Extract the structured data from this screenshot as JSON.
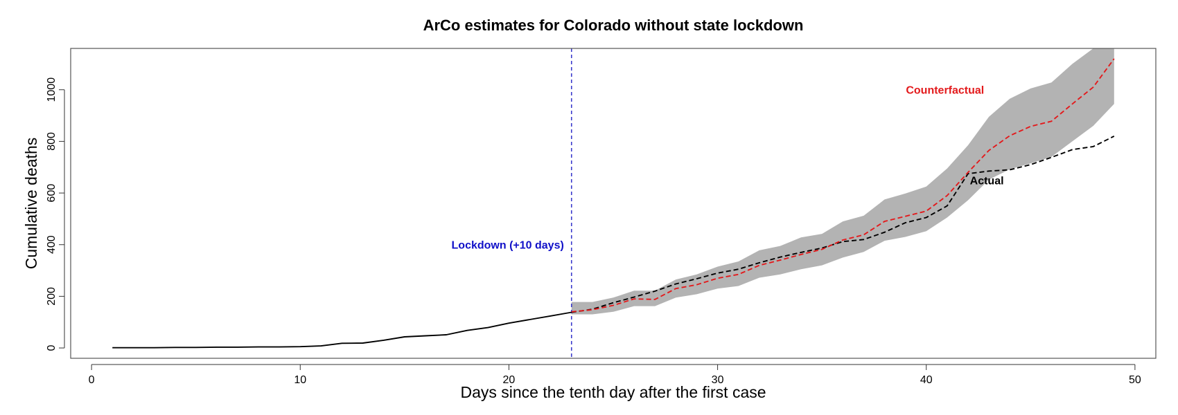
{
  "chart_data": {
    "type": "line",
    "title": "ArCo estimates for Colorado without state lockdown",
    "xlabel": "Days since the tenth day after the first case",
    "ylabel": "Cumulative deaths",
    "xlim": [
      -1,
      51
    ],
    "ylim": [
      -40,
      1160
    ],
    "xticks": [
      0,
      10,
      20,
      30,
      40,
      50
    ],
    "yticks": [
      0,
      200,
      400,
      600,
      800,
      1000
    ],
    "lockdown_day": 23,
    "colors": {
      "observed": "#000000",
      "actual": "#000000",
      "counterfactual": "#e31a1c",
      "band": "#b3b3b3",
      "lockdown": "#3b3bcc",
      "lockdown_text": "#1010c8",
      "counterfactual_text": "#e31a1c",
      "actual_text": "#000000"
    },
    "series": [
      {
        "name": "Observed (pre-lockdown)",
        "style": "solid",
        "x": [
          1,
          2,
          3,
          4,
          5,
          6,
          7,
          8,
          9,
          10,
          11,
          12,
          13,
          14,
          15,
          16,
          17,
          18,
          19,
          20,
          21,
          22,
          23
        ],
        "values": [
          1,
          1,
          1,
          2,
          2,
          3,
          3,
          4,
          4,
          5,
          8,
          18,
          19,
          30,
          43,
          47,
          51,
          68,
          79,
          96,
          110,
          124,
          138
        ]
      },
      {
        "name": "Actual",
        "style": "dashed",
        "x": [
          23,
          24,
          25,
          26,
          27,
          28,
          29,
          30,
          31,
          32,
          33,
          34,
          35,
          36,
          37,
          38,
          39,
          40,
          41,
          42,
          43,
          44,
          45,
          46,
          47,
          48,
          49
        ],
        "values": [
          138,
          150,
          175,
          197,
          220,
          248,
          268,
          290,
          305,
          330,
          352,
          370,
          387,
          412,
          420,
          448,
          485,
          505,
          550,
          675,
          685,
          690,
          710,
          738,
          768,
          780,
          820
        ]
      },
      {
        "name": "Counterfactual",
        "style": "dashed",
        "x": [
          23,
          24,
          25,
          26,
          27,
          28,
          29,
          30,
          31,
          32,
          33,
          34,
          35,
          36,
          37,
          38,
          39,
          40,
          41,
          42,
          43,
          44,
          45,
          46,
          47,
          48,
          49
        ],
        "values": [
          140,
          148,
          165,
          190,
          188,
          230,
          245,
          270,
          285,
          320,
          340,
          362,
          382,
          418,
          438,
          490,
          510,
          530,
          590,
          680,
          765,
          822,
          858,
          878,
          945,
          1010,
          1120
        ]
      }
    ],
    "confidence_band": {
      "name": "Counterfactual interval",
      "x": [
        23,
        24,
        25,
        26,
        27,
        28,
        29,
        30,
        31,
        32,
        33,
        34,
        35,
        36,
        37,
        38,
        39,
        40,
        41,
        42,
        43,
        44,
        45,
        46,
        47,
        48,
        49
      ],
      "lower": [
        130,
        130,
        140,
        162,
        162,
        195,
        208,
        230,
        240,
        272,
        285,
        305,
        320,
        350,
        372,
        415,
        430,
        452,
        505,
        572,
        652,
        692,
        715,
        740,
        800,
        860,
        945
      ],
      "upper": [
        178,
        178,
        195,
        222,
        222,
        265,
        285,
        315,
        335,
        378,
        395,
        428,
        442,
        490,
        512,
        575,
        598,
        625,
        695,
        785,
        895,
        965,
        1005,
        1028,
        1100,
        1160,
        1160
      ]
    },
    "annotations": {
      "lockdown": "Lockdown (+10 days)",
      "counterfactual": "Counterfactual",
      "actual": "Actual"
    }
  }
}
